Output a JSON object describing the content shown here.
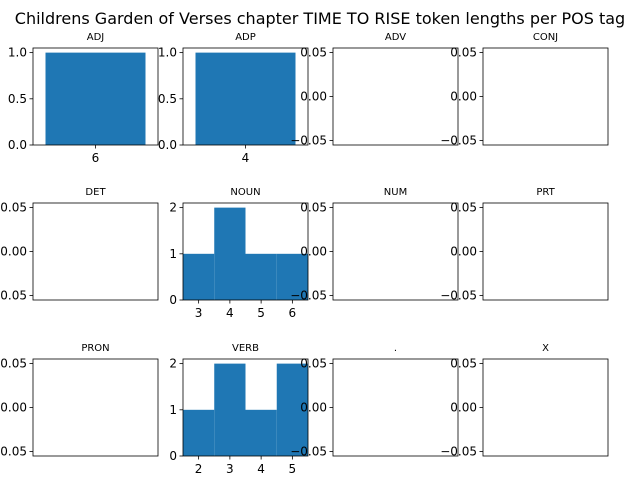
{
  "figure": {
    "title": "Childrens Garden of Verses chapter TIME TO RISE token lengths per POS tag"
  },
  "chart_data": [
    {
      "type": "bar",
      "title": "ADJ",
      "categories": [
        "6"
      ],
      "values": [
        1
      ],
      "xlim": [
        5.5,
        6.5
      ],
      "xticks": [
        6
      ],
      "ylim": [
        0,
        1.05
      ],
      "yticks": [
        "0.0",
        "0.5",
        "1.0"
      ],
      "color": "#1f77b4"
    },
    {
      "type": "bar",
      "title": "ADP",
      "categories": [
        "4"
      ],
      "values": [
        1
      ],
      "xlim": [
        3.5,
        4.5
      ],
      "xticks": [
        4
      ],
      "ylim": [
        0,
        1.05
      ],
      "yticks": [
        "0.0",
        "0.5",
        "1.0"
      ],
      "color": "#1f77b4"
    },
    {
      "type": "bar",
      "title": "ADV",
      "categories": [],
      "values": [],
      "yticks": [
        "0.05",
        "0.00",
        "−0.05"
      ]
    },
    {
      "type": "bar",
      "title": "CONJ",
      "categories": [],
      "values": [],
      "yticks": [
        "0.05",
        "0.00",
        "−0.05"
      ]
    },
    {
      "type": "bar",
      "title": "DET",
      "categories": [],
      "values": [],
      "yticks": [
        "0.05",
        "0.00",
        "−0.05"
      ]
    },
    {
      "type": "bar",
      "title": "NOUN",
      "categories": [
        "3",
        "4",
        "5",
        "6"
      ],
      "values": [
        1,
        2,
        1,
        1
      ],
      "bins": [
        [
          2.5,
          3.5,
          1
        ],
        [
          3.5,
          4.5,
          2
        ],
        [
          4.5,
          5.5,
          1
        ],
        [
          5.5,
          6.5,
          1
        ]
      ],
      "xlim": [
        2.5,
        6.5
      ],
      "xticks": [
        3,
        4,
        5,
        6
      ],
      "ylim": [
        0,
        2.1
      ],
      "yticks": [
        "0",
        "1",
        "2"
      ],
      "color": "#1f77b4"
    },
    {
      "type": "bar",
      "title": "NUM",
      "categories": [],
      "values": [],
      "yticks": [
        "0.05",
        "0.00",
        "−0.05"
      ]
    },
    {
      "type": "bar",
      "title": "PRT",
      "categories": [],
      "values": [],
      "yticks": [
        "0.05",
        "0.00",
        "−0.05"
      ]
    },
    {
      "type": "bar",
      "title": "PRON",
      "categories": [],
      "values": [],
      "yticks": [
        "0.05",
        "0.00",
        "−0.05"
      ]
    },
    {
      "type": "bar",
      "title": "VERB",
      "categories": [
        "2",
        "3",
        "4",
        "5"
      ],
      "values": [
        1,
        2,
        1,
        2
      ],
      "bins": [
        [
          1.5,
          2.5,
          1
        ],
        [
          2.5,
          3.5,
          2
        ],
        [
          3.5,
          4.5,
          1
        ],
        [
          4.5,
          5.5,
          2
        ]
      ],
      "xlim": [
        1.5,
        5.5
      ],
      "xticks": [
        2,
        3,
        4,
        5
      ],
      "ylim": [
        0,
        2.1
      ],
      "yticks": [
        "0",
        "1",
        "2"
      ],
      "color": "#1f77b4"
    },
    {
      "type": "bar",
      "title": ".",
      "categories": [],
      "values": [],
      "yticks": [
        "0.05",
        "0.00",
        "−0.05"
      ]
    },
    {
      "type": "bar",
      "title": "X",
      "categories": [],
      "values": [],
      "yticks": [
        "0.05",
        "0.00",
        "−0.05"
      ]
    }
  ]
}
